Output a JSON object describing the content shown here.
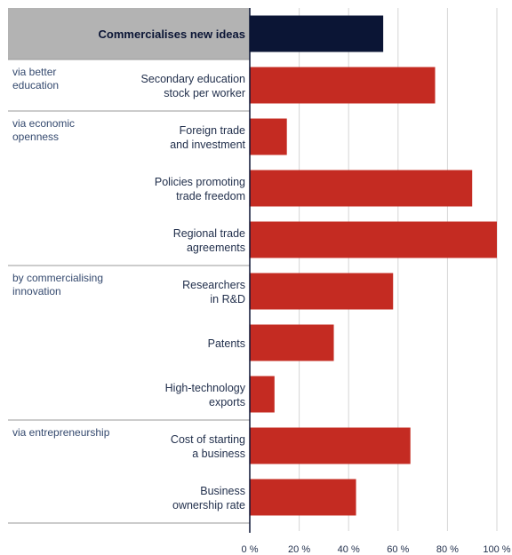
{
  "chart_data": {
    "type": "bar",
    "orientation": "horizontal",
    "xlim": [
      0,
      100
    ],
    "x_ticks": [
      "0 %",
      "20 %",
      "40 %",
      "60 %",
      "80 %",
      "100 %"
    ],
    "grid": true,
    "colors": {
      "header": "#0b1535",
      "bar": "#c42b22",
      "header_band": "#b3b3b3"
    },
    "header": {
      "label": "Commercialises new ideas",
      "value": 54
    },
    "groups": [
      {
        "label": [
          "via better",
          "education"
        ],
        "items": [
          {
            "label": [
              "Secondary education",
              "stock per worker"
            ],
            "value": 75
          }
        ]
      },
      {
        "label": [
          "via economic",
          "openness"
        ],
        "items": [
          {
            "label": [
              "Foreign trade",
              "and investment"
            ],
            "value": 15
          },
          {
            "label": [
              "Policies promoting",
              "trade freedom"
            ],
            "value": 90
          },
          {
            "label": [
              "Regional trade",
              "agreements"
            ],
            "value": 100
          }
        ]
      },
      {
        "label": [
          "by commercialising",
          "innovation"
        ],
        "items": [
          {
            "label": [
              "Researchers",
              "in R&D"
            ],
            "value": 58
          },
          {
            "label": [
              "Patents"
            ],
            "value": 34
          },
          {
            "label": [
              "High-technology",
              "exports"
            ],
            "value": 10
          }
        ]
      },
      {
        "label": [
          "via entrepreneurship"
        ],
        "items": [
          {
            "label": [
              "Cost of starting",
              "a business"
            ],
            "value": 65
          },
          {
            "label": [
              "Business",
              "ownership rate"
            ],
            "value": 43
          }
        ]
      }
    ]
  }
}
